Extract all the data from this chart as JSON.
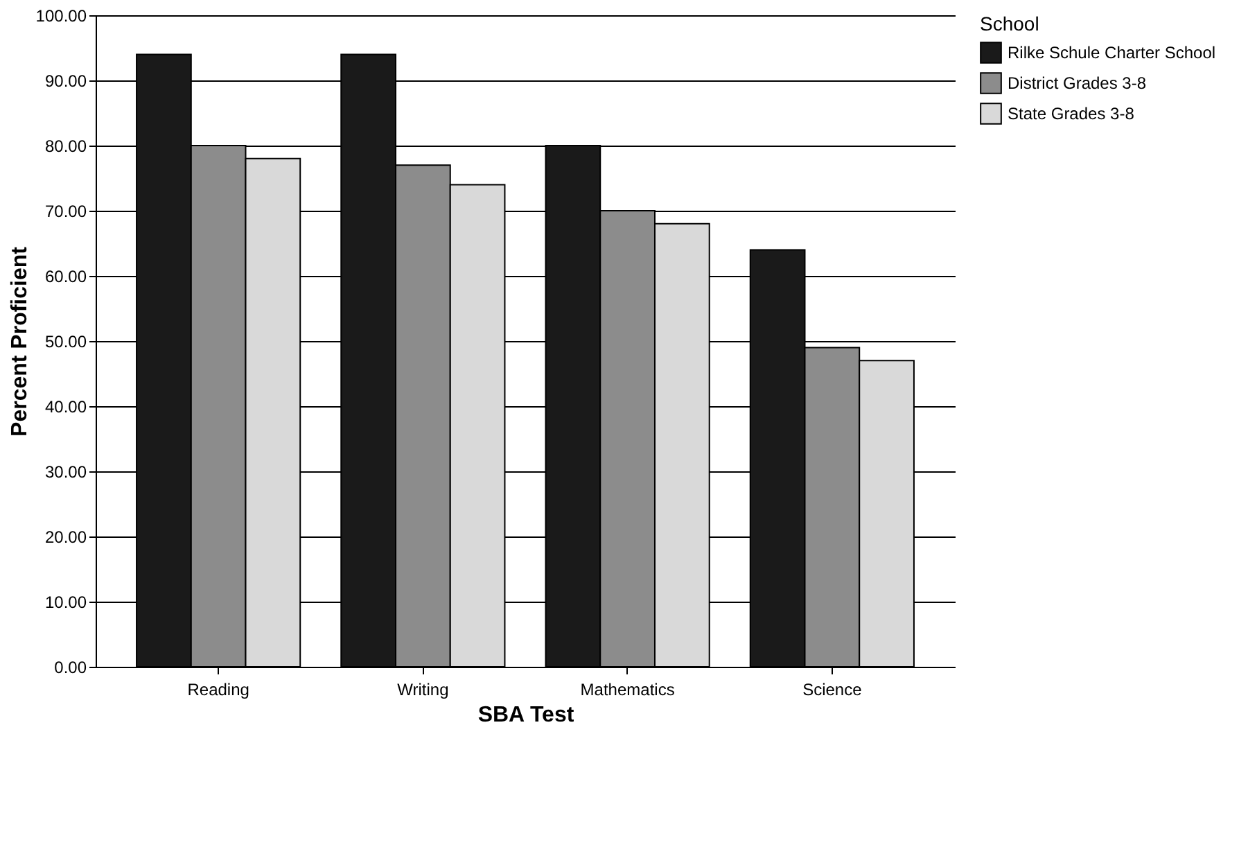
{
  "chart_data": {
    "type": "bar",
    "xlabel": "SBA Test",
    "ylabel": "Percent Proficient",
    "legend_title": "School",
    "categories": [
      "Reading",
      "Writing",
      "Mathematics",
      "Science"
    ],
    "series": [
      {
        "name": "Rilke Schule Charter School",
        "color": "#1a1a1a",
        "values": [
          94,
          94,
          80,
          64
        ]
      },
      {
        "name": "District Grades 3-8",
        "color": "#8c8c8c",
        "values": [
          80,
          77,
          70,
          49
        ]
      },
      {
        "name": "State Grades 3-8",
        "color": "#d9d9d9",
        "values": [
          78,
          74,
          68,
          47
        ]
      }
    ],
    "ylim": [
      0,
      100
    ],
    "yticks": [
      {
        "value": 0,
        "label": "0.00"
      },
      {
        "value": 10,
        "label": "10.00"
      },
      {
        "value": 20,
        "label": "20.00"
      },
      {
        "value": 30,
        "label": "30.00"
      },
      {
        "value": 40,
        "label": "40.00"
      },
      {
        "value": 50,
        "label": "50.00"
      },
      {
        "value": 60,
        "label": "60.00"
      },
      {
        "value": 70,
        "label": "70.00"
      },
      {
        "value": 80,
        "label": "80.00"
      },
      {
        "value": 90,
        "label": "90.00"
      },
      {
        "value": 100,
        "label": "100.00"
      }
    ],
    "grid": "y",
    "legend": "top right"
  }
}
